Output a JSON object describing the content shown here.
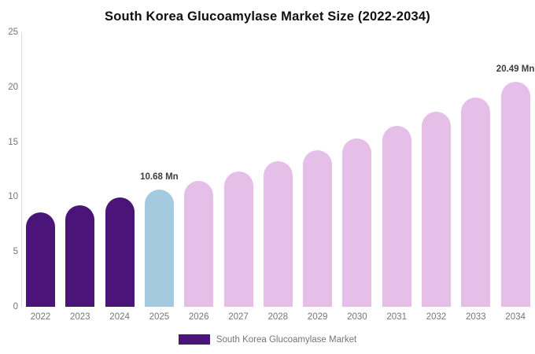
{
  "chart_data": {
    "type": "bar",
    "title": "South Korea Glucoamylase Market Size (2022-2034)",
    "categories": [
      "2022",
      "2023",
      "2024",
      "2025",
      "2026",
      "2027",
      "2028",
      "2029",
      "2030",
      "2031",
      "2032",
      "2033",
      "2034"
    ],
    "values": [
      8.59,
      9.24,
      9.93,
      10.68,
      11.48,
      12.34,
      13.27,
      14.27,
      15.34,
      16.49,
      17.73,
      19.06,
      20.49
    ],
    "bar_colors": [
      "#4a1478",
      "#4a1478",
      "#4a1478",
      "#a4cadf",
      "#e5bfe8",
      "#e5bfe8",
      "#e5bfe8",
      "#e5bfe8",
      "#e5bfe8",
      "#e5bfe8",
      "#e5bfe8",
      "#e5bfe8",
      "#e5bfe8"
    ],
    "annotations": [
      {
        "category": "2025",
        "text": "10.68 Mn"
      },
      {
        "category": "2034",
        "text": "20.49 Mn"
      }
    ],
    "xlabel": "",
    "ylabel": "",
    "y_ticks": [
      0,
      5,
      10,
      15,
      20,
      25
    ],
    "ylim": [
      0,
      25
    ],
    "grid": false,
    "legend": {
      "position": "bottom",
      "label": "South Korea Glucoamylase Market",
      "color": "#4a1478"
    },
    "colors": {
      "historical_bar": "#4a1478",
      "base_year_bar": "#a4cadf",
      "forecast_bar": "#e5bfe8",
      "axis_line": "#d9d9d9",
      "tick_text": "#757575",
      "data_label_text": "#3d3d3d",
      "title_text": "#0f0f0f"
    }
  }
}
